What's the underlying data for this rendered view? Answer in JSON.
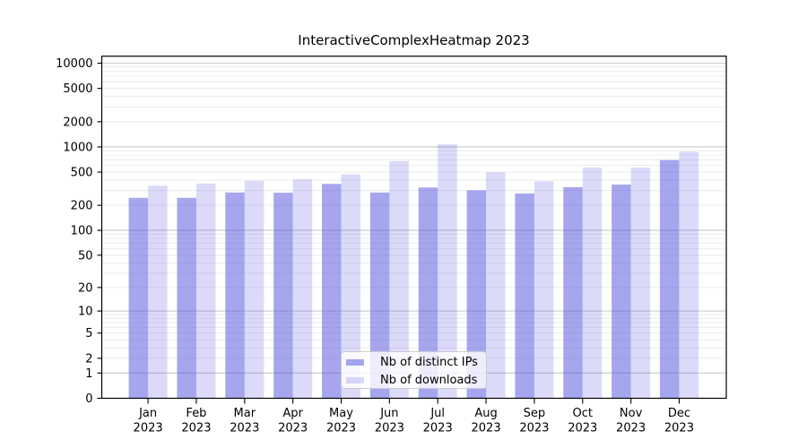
{
  "title": "InteractiveComplexHeatmap 2023",
  "legend": {
    "items": [
      {
        "label": "Nb of distinct IPs",
        "series_key": "ips"
      },
      {
        "label": "Nb of downloads",
        "series_key": "downloads"
      }
    ]
  },
  "colors": {
    "bar_ips": "rgba(77,77,223,0.5)",
    "bar_downloads": "rgba(77,77,223,0.2)",
    "grid_major": "#c8c8c8",
    "grid_minor": "#ececec",
    "spine": "#000000",
    "text": "#000000",
    "legend_border": "#cccccc",
    "legend_background": "rgba(255,255,255,0.8)"
  },
  "chart_data": {
    "type": "bar",
    "title": "InteractiveComplexHeatmap 2023",
    "categories": [
      "Jan",
      "Feb",
      "Mar",
      "Apr",
      "May",
      "Jun",
      "Jul",
      "Aug",
      "Sep",
      "Oct",
      "Nov",
      "Dec"
    ],
    "year_label": "2023",
    "series": [
      {
        "name": "Nb of distinct IPs",
        "values": [
          246,
          246,
          285,
          283,
          361,
          285,
          327,
          303,
          277,
          330,
          355,
          696
        ]
      },
      {
        "name": "Nb of downloads",
        "values": [
          344,
          364,
          394,
          411,
          469,
          676,
          1075,
          497,
          389,
          567,
          566,
          877
        ]
      }
    ],
    "yscale": "log10(1+v)",
    "yticks": [
      0,
      1,
      2,
      5,
      10,
      20,
      50,
      100,
      200,
      500,
      1000,
      2000,
      5000,
      10000
    ],
    "ymajor_gridlines": [
      1,
      10,
      100,
      1000,
      10000
    ],
    "ylim": [
      0,
      12100
    ],
    "grid": true,
    "legend_position": "lower center inside axes",
    "xlabel": "",
    "ylabel": ""
  }
}
